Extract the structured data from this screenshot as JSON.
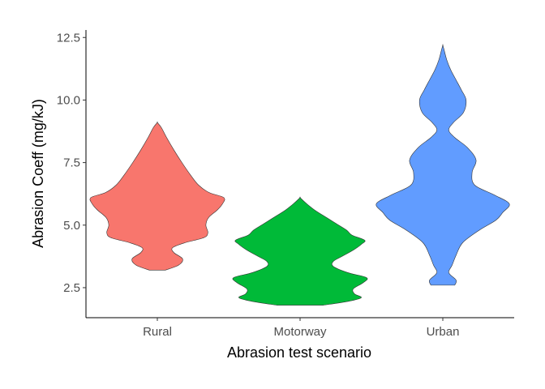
{
  "chart_data": {
    "type": "violin",
    "title": "",
    "xlabel": "Abrasion test scenario",
    "ylabel": "Abrasion Coeff (mg/kJ)",
    "ylim": [
      1.3,
      12.8
    ],
    "yticks": [
      2.5,
      5.0,
      7.5,
      10.0,
      12.5
    ],
    "ytick_labels": [
      "2.5",
      "5.0",
      "7.5",
      "10.0",
      "12.5"
    ],
    "categories": [
      "Rural",
      "Motorway",
      "Urban"
    ],
    "grid": false,
    "legend": "none",
    "series": [
      {
        "category": "Rural",
        "color": "#F8766D",
        "y_min": 3.2,
        "y_max": 9.1,
        "profile_y": [
          3.2,
          3.4,
          3.65,
          3.9,
          4.1,
          4.3,
          4.5,
          4.7,
          5.0,
          5.3,
          5.6,
          5.85,
          6.1,
          6.3,
          6.6,
          7.0,
          7.5,
          8.0,
          8.5,
          8.9,
          9.1
        ],
        "density": [
          0.12,
          0.32,
          0.38,
          0.25,
          0.23,
          0.42,
          0.7,
          0.76,
          0.73,
          0.77,
          0.9,
          0.98,
          1.0,
          0.78,
          0.62,
          0.5,
          0.37,
          0.25,
          0.14,
          0.06,
          0.0
        ]
      },
      {
        "category": "Motorway",
        "color": "#00BA38",
        "y_min": 1.8,
        "y_max": 6.1,
        "profile_y": [
          1.8,
          1.95,
          2.1,
          2.25,
          2.45,
          2.7,
          2.9,
          3.1,
          3.35,
          3.55,
          3.75,
          4.0,
          4.25,
          4.4,
          4.6,
          4.8,
          5.05,
          5.3,
          5.6,
          5.9,
          6.1
        ],
        "density": [
          0.35,
          0.72,
          0.92,
          0.82,
          0.8,
          0.95,
          1.0,
          0.72,
          0.5,
          0.5,
          0.63,
          0.8,
          0.93,
          0.97,
          0.78,
          0.7,
          0.55,
          0.4,
          0.22,
          0.08,
          0.0
        ]
      },
      {
        "category": "Urban",
        "color": "#619CFF",
        "y_min": 2.6,
        "y_max": 12.2,
        "profile_y": [
          2.6,
          2.8,
          3.1,
          3.4,
          3.8,
          4.3,
          4.8,
          5.2,
          5.5,
          5.85,
          6.2,
          6.6,
          7.1,
          7.6,
          8.1,
          8.5,
          8.8,
          9.1,
          9.5,
          10.0,
          10.4,
          10.8,
          11.2,
          11.6,
          12.0,
          12.2
        ],
        "density": [
          0.18,
          0.2,
          0.09,
          0.14,
          0.2,
          0.3,
          0.55,
          0.8,
          0.9,
          1.0,
          0.78,
          0.48,
          0.44,
          0.5,
          0.37,
          0.18,
          0.09,
          0.16,
          0.31,
          0.35,
          0.28,
          0.2,
          0.12,
          0.06,
          0.02,
          0.0
        ]
      }
    ]
  }
}
